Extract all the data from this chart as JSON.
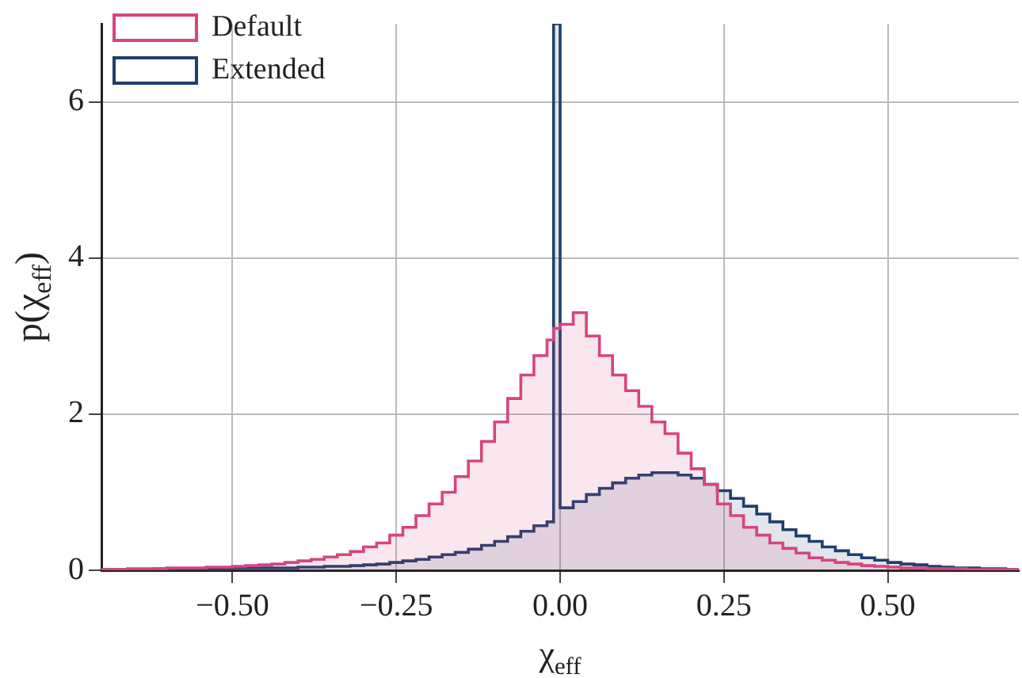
{
  "chart_data": {
    "type": "histogram",
    "xlabel": "χ$_{eff}$",
    "ylabel": "p(χ$_{eff}$)",
    "bins": [
      -0.7,
      -0.68,
      -0.66,
      -0.64,
      -0.62,
      -0.6,
      -0.58,
      -0.56,
      -0.54,
      -0.52,
      -0.5,
      -0.48,
      -0.46,
      -0.44,
      -0.42,
      -0.4,
      -0.38,
      -0.36,
      -0.34,
      -0.32,
      -0.3,
      -0.28,
      -0.26,
      -0.24,
      -0.22,
      -0.2,
      -0.18,
      -0.16,
      -0.14,
      -0.12,
      -0.1,
      -0.08,
      -0.06,
      -0.04,
      -0.02,
      -0.01,
      0,
      0.02,
      0.04,
      0.06,
      0.08,
      0.1,
      0.12,
      0.14,
      0.16,
      0.18,
      0.2,
      0.22,
      0.24,
      0.26,
      0.28,
      0.3,
      0.32,
      0.34,
      0.36,
      0.38,
      0.4,
      0.42,
      0.44,
      0.46,
      0.48,
      0.5,
      0.52,
      0.54,
      0.56,
      0.58,
      0.6,
      0.62,
      0.64,
      0.66,
      0.68,
      0.7
    ],
    "series": [
      {
        "name": "Default",
        "color": "#d6457f",
        "values": [
          0.01,
          0.01,
          0.02,
          0.02,
          0.02,
          0.03,
          0.03,
          0.03,
          0.04,
          0.04,
          0.05,
          0.06,
          0.07,
          0.08,
          0.1,
          0.12,
          0.14,
          0.17,
          0.2,
          0.24,
          0.3,
          0.35,
          0.45,
          0.55,
          0.7,
          0.85,
          1.0,
          1.2,
          1.4,
          1.65,
          1.9,
          2.2,
          2.5,
          2.75,
          2.95,
          3.1,
          3.15,
          3.3,
          3.0,
          2.75,
          2.5,
          2.3,
          2.1,
          1.9,
          1.75,
          1.5,
          1.3,
          1.1,
          0.85,
          0.7,
          0.55,
          0.45,
          0.35,
          0.28,
          0.22,
          0.16,
          0.13,
          0.1,
          0.08,
          0.06,
          0.05,
          0.04,
          0.03,
          0.03,
          0.02,
          0.02,
          0.02,
          0.01,
          0.01,
          0.01,
          0.01
        ]
      },
      {
        "name": "Extended",
        "color": "#1f3f6e",
        "values": [
          0.01,
          0.01,
          0.01,
          0.01,
          0.02,
          0.02,
          0.02,
          0.02,
          0.02,
          0.02,
          0.03,
          0.03,
          0.03,
          0.03,
          0.03,
          0.04,
          0.04,
          0.05,
          0.05,
          0.06,
          0.07,
          0.08,
          0.1,
          0.12,
          0.14,
          0.17,
          0.2,
          0.23,
          0.27,
          0.32,
          0.37,
          0.43,
          0.5,
          0.57,
          0.62,
          7,
          0.8,
          0.88,
          0.97,
          1.05,
          1.12,
          1.18,
          1.22,
          1.25,
          1.25,
          1.22,
          1.18,
          1.1,
          1.02,
          0.92,
          0.82,
          0.72,
          0.62,
          0.52,
          0.44,
          0.37,
          0.3,
          0.25,
          0.2,
          0.16,
          0.13,
          0.1,
          0.08,
          0.07,
          0.05,
          0.04,
          0.03,
          0.03,
          0.02,
          0.02,
          0.01
        ]
      }
    ],
    "xlim": [
      -0.7,
      0.7
    ],
    "ylim": [
      0,
      7
    ],
    "xticks": [
      {
        "value": -0.5,
        "label": "−0.50"
      },
      {
        "value": -0.25,
        "label": "−0.25"
      },
      {
        "value": 0,
        "label": "0.00"
      },
      {
        "value": 0.25,
        "label": "0.25"
      },
      {
        "value": 0.5,
        "label": "0.50"
      }
    ],
    "yticks": [
      0,
      2,
      4,
      6
    ],
    "grid": true,
    "legend": "top left"
  }
}
